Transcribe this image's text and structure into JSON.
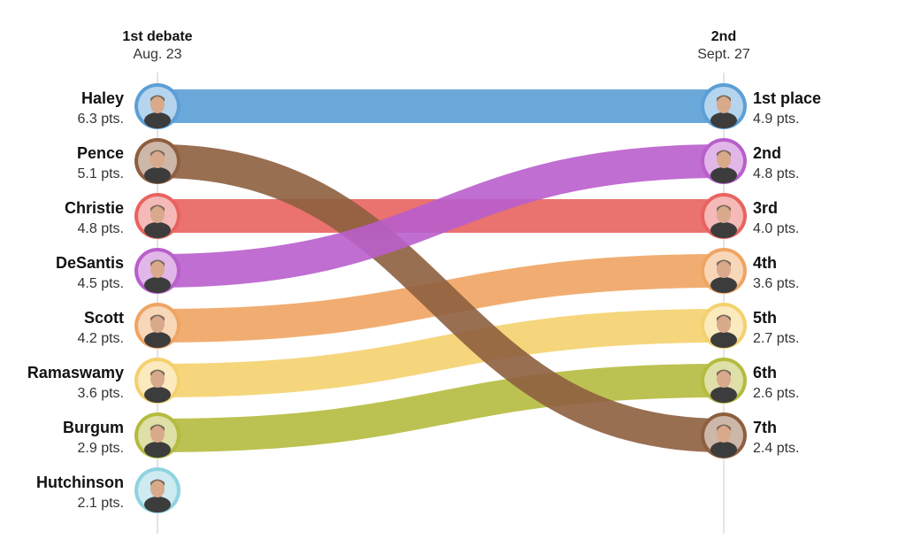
{
  "chart_data": {
    "type": "slope",
    "columns": [
      {
        "title": "1st debate",
        "subtitle": "Aug. 23"
      },
      {
        "title": "2nd",
        "subtitle": "Sept. 27"
      }
    ],
    "candidates": [
      {
        "name": "Haley",
        "color": "#5b9fd6",
        "first": {
          "rank": 1,
          "score": 6.3,
          "label": "6.3 pts."
        },
        "second": {
          "rank": 1,
          "place": "1st place",
          "score": 4.9,
          "label": "4.9 pts."
        }
      },
      {
        "name": "Pence",
        "color": "#8e5f3f",
        "first": {
          "rank": 2,
          "score": 5.1,
          "label": "5.1 pts."
        },
        "second": {
          "rank": 7,
          "place": "7th",
          "score": 2.4,
          "label": "2.4 pts."
        }
      },
      {
        "name": "Christie",
        "color": "#e8635f",
        "first": {
          "rank": 3,
          "score": 4.8,
          "label": "4.8 pts."
        },
        "second": {
          "rank": 3,
          "place": "3rd",
          "score": 4.0,
          "label": "4.0 pts."
        }
      },
      {
        "name": "DeSantis",
        "color": "#b95ecc",
        "first": {
          "rank": 4,
          "score": 4.5,
          "label": "4.5 pts."
        },
        "second": {
          "rank": 2,
          "place": "2nd",
          "score": 4.8,
          "label": "4.8 pts."
        }
      },
      {
        "name": "Scott",
        "color": "#f0a462",
        "first": {
          "rank": 5,
          "score": 4.2,
          "label": "4.2 pts."
        },
        "second": {
          "rank": 4,
          "place": "4th",
          "score": 3.6,
          "label": "3.6 pts."
        }
      },
      {
        "name": "Ramaswamy",
        "color": "#f4d16e",
        "first": {
          "rank": 6,
          "score": 3.6,
          "label": "3.6 pts."
        },
        "second": {
          "rank": 5,
          "place": "5th",
          "score": 2.7,
          "label": "2.7 pts."
        }
      },
      {
        "name": "Burgum",
        "color": "#b5bb3e",
        "first": {
          "rank": 7,
          "score": 2.9,
          "label": "2.9 pts."
        },
        "second": {
          "rank": 6,
          "place": "6th",
          "score": 2.6,
          "label": "2.6 pts."
        }
      },
      {
        "name": "Hutchinson",
        "color": "#8fd3e0",
        "first": {
          "rank": 8,
          "score": 2.1,
          "label": "2.1 pts."
        },
        "second": null
      }
    ]
  }
}
